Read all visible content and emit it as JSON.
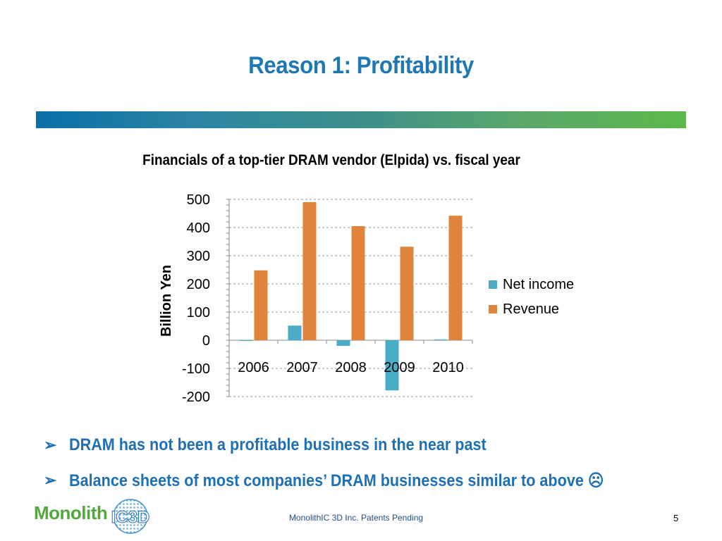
{
  "slide": {
    "title": "Reason 1: Profitability",
    "footer": "MonolithIC 3D Inc. Patents Pending",
    "page_number": "5",
    "logo": {
      "word": "Monolith",
      "mark": "IC3D"
    }
  },
  "bullets": [
    {
      "arrow": "➢",
      "text": "DRAM has not been a profitable business in the near past"
    },
    {
      "arrow": "➢",
      "text": "Balance sheets of most companies’ DRAM businesses similar to above ☹"
    }
  ],
  "chart_data": {
    "type": "bar",
    "title": "Financials of a top-tier DRAM vendor (Elpida) vs. fiscal year",
    "ylabel": "Billion Yen",
    "xlabel": "",
    "categories": [
      "2006",
      "2007",
      "2008",
      "2009",
      "2010"
    ],
    "series": [
      {
        "name": "Net income",
        "color": "#4aacc6",
        "values": [
          -2,
          52,
          -20,
          -178,
          3
        ]
      },
      {
        "name": "Revenue",
        "color": "#e0843c",
        "values": [
          248,
          490,
          405,
          332,
          442
        ]
      }
    ],
    "ylim": [
      -200,
      500
    ],
    "yticks": [
      "500",
      "400",
      "300",
      "200",
      "100",
      "0",
      "-100",
      "-200"
    ],
    "grid": true,
    "legend_position": "right"
  }
}
